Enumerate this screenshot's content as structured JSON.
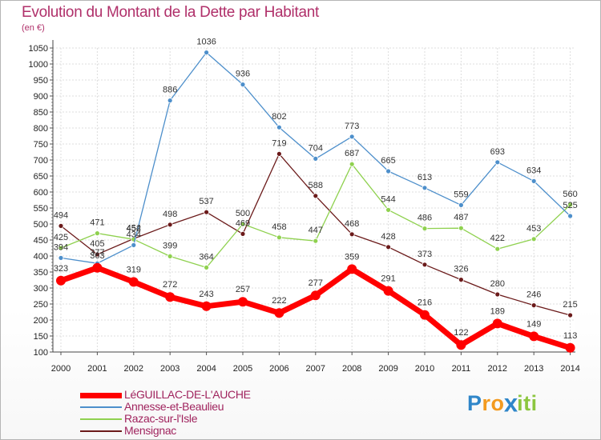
{
  "title": "Evolution du Montant de la Dette par Habitant",
  "subtitle": "(en €)",
  "chart_data": {
    "type": "line",
    "title": "Evolution du Montant de la Dette par Habitant",
    "subtitle": "(en €)",
    "x": [
      "2000",
      "2001",
      "2002",
      "2003",
      "2004",
      "2005",
      "2006",
      "2007",
      "2008",
      "2009",
      "2010",
      "2011",
      "2012",
      "2013",
      "2014"
    ],
    "ylim": [
      100,
      1050
    ],
    "yticks": [
      100,
      150,
      200,
      250,
      300,
      350,
      400,
      450,
      500,
      550,
      600,
      650,
      700,
      750,
      800,
      850,
      900,
      950,
      1000,
      1050
    ],
    "grid": true,
    "legend_position": "bottom-left",
    "series": [
      {
        "name": "LéGUILLAC-DE-L'AUCHE",
        "color": "#ff0000",
        "values": [
          323,
          363,
          319,
          272,
          243,
          257,
          222,
          277,
          359,
          291,
          216,
          122,
          189,
          149,
          113
        ]
      },
      {
        "name": "Annesse-et-Beaulieu",
        "color": "#4d8fcb",
        "values": [
          394,
          377,
          434,
          886,
          1036,
          936,
          802,
          704,
          773,
          665,
          613,
          559,
          693,
          634,
          525
        ]
      },
      {
        "name": "Razac-sur-l'Isle",
        "color": "#8fd14f",
        "values": [
          425,
          471,
          452,
          399,
          364,
          500,
          458,
          447,
          687,
          544,
          486,
          487,
          422,
          453,
          560
        ]
      },
      {
        "name": "Mensignac",
        "color": "#6b1a1a",
        "values": [
          494,
          405,
          454,
          498,
          537,
          469,
          719,
          588,
          468,
          428,
          373,
          326,
          280,
          246,
          215
        ]
      }
    ],
    "label_overrides": {
      "1": [
        {
          "x": 1,
          "text": "363"
        },
        {
          "x": 1,
          "text": "377"
        }
      ]
    }
  },
  "legend": [
    {
      "label": "LéGUILLAC-DE-L'AUCHE",
      "color": "#ff0000",
      "thickness": 7
    },
    {
      "label": "Annesse-et-Beaulieu",
      "color": "#4d8fcb",
      "thickness": 2
    },
    {
      "label": "Razac-sur-l'Isle",
      "color": "#8fd14f",
      "thickness": 2
    },
    {
      "label": "Mensignac",
      "color": "#6b1a1a",
      "thickness": 2
    }
  ],
  "logo": {
    "letters": [
      "P",
      "r",
      "o",
      "x",
      "i",
      "t",
      "i"
    ],
    "colors": [
      "#2f86c9",
      "#f39a1f",
      "#f39a1f",
      "#2f86c9",
      "#8cc63f",
      "#8cc63f",
      "#8cc63f"
    ]
  }
}
